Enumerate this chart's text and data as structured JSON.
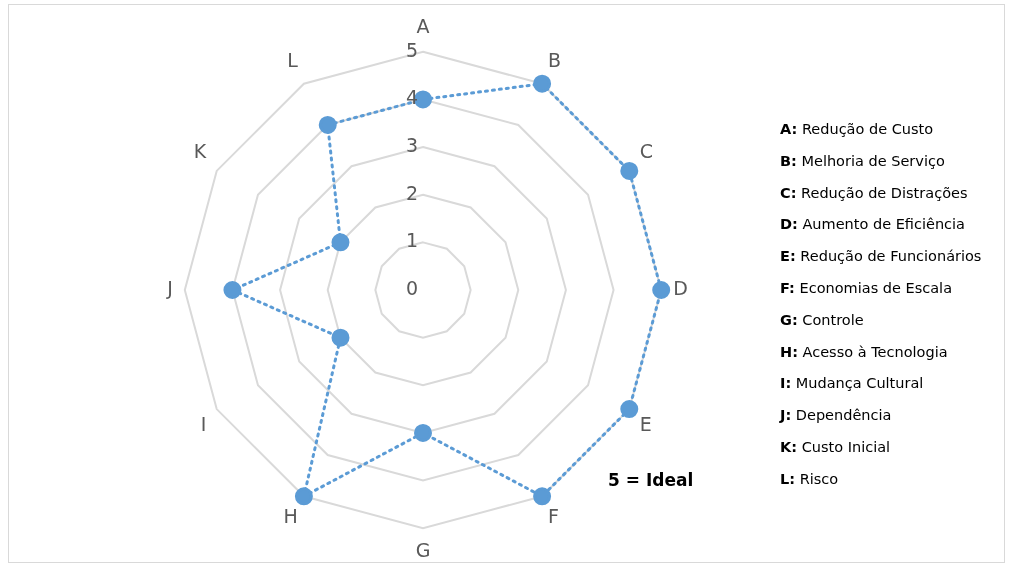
{
  "chart_data": {
    "type": "radar",
    "categories": [
      "A",
      "B",
      "C",
      "D",
      "E",
      "F",
      "G",
      "H",
      "I",
      "J",
      "K",
      "L"
    ],
    "series": [
      {
        "color": "#5b9bd5",
        "values": [
          4,
          5,
          5,
          5,
          5,
          5,
          3,
          5,
          2,
          4,
          2,
          4
        ]
      }
    ],
    "ylim": [
      0,
      5
    ],
    "yticks": [
      0,
      1,
      2,
      3,
      4,
      5
    ],
    "grid": true,
    "legend": false,
    "marker": "circle",
    "line_style": "dotted",
    "annotations": [
      "A: Redução de Custo",
      "B: Melhoria de Serviço",
      "C: Redução de Distrações",
      "D: Aumento de Eficiência",
      "E: Redução de Funcionários",
      "F: Economias de Escala",
      "G: Controle",
      "H: Acesso à Tecnologia",
      "I: Mudança Cultural",
      "J: Dependência",
      "K: Custo Inicial",
      "L: Risco",
      "5 = Ideal"
    ]
  }
}
